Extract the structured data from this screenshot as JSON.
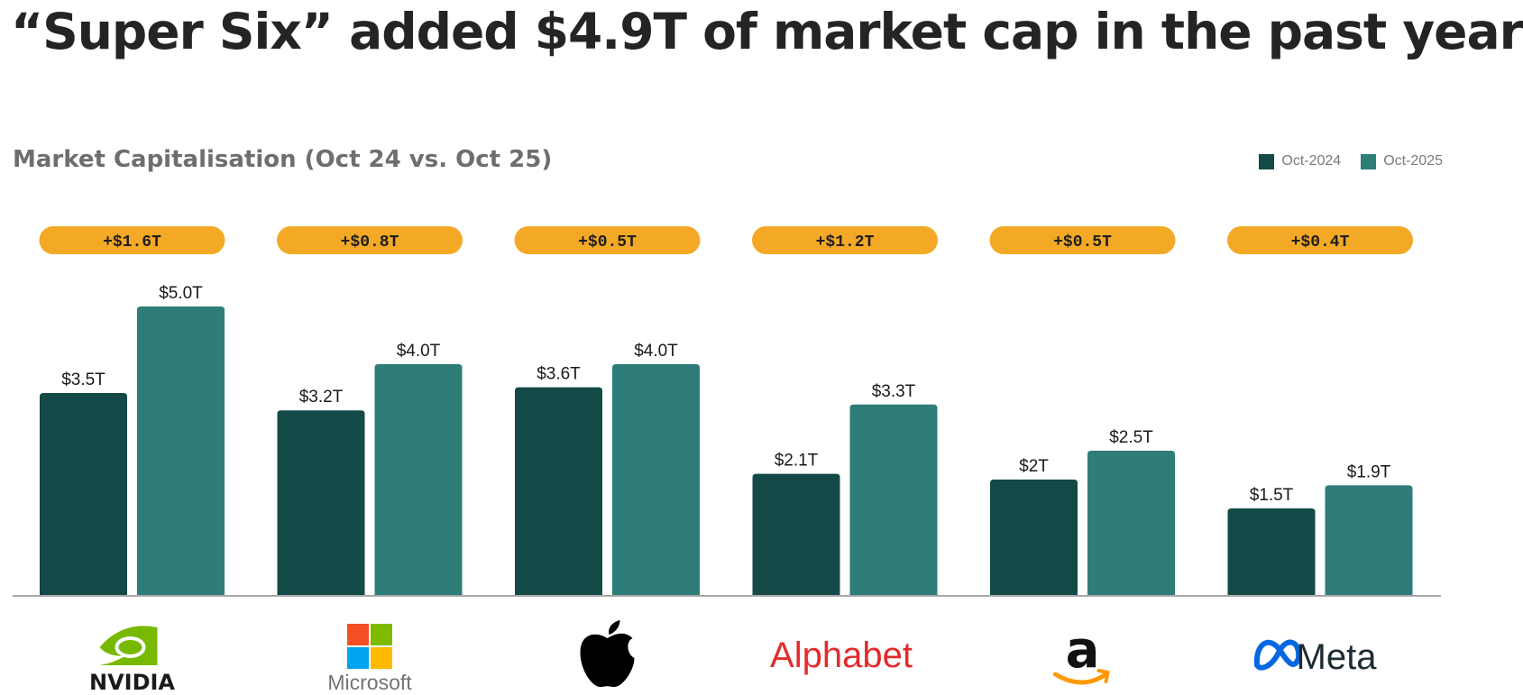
{
  "headline": "“Super Six” added $4.9T of market cap in the past year",
  "colors": {
    "oct2024": "#134a47",
    "oct2025": "#2e7d78",
    "pill": "#f3a926",
    "baseline": "#8a8a8a"
  },
  "chart_data": {
    "type": "bar",
    "title": "Market Capitalisation (Oct 24 vs. Oct 25)",
    "xlabel": "",
    "ylabel": "",
    "ylim": [
      0,
      5.2
    ],
    "grid": false,
    "legend_position": "top-right",
    "categories": [
      "NVIDIA",
      "Microsoft",
      "Apple",
      "Alphabet",
      "Amazon",
      "Meta"
    ],
    "series": [
      {
        "name": "Oct-2024",
        "values": [
          3.5,
          3.2,
          3.6,
          2.1,
          2.0,
          1.5
        ],
        "labels": [
          "$3.5T",
          "$3.2T",
          "$3.6T",
          "$2.1T",
          "$2T",
          "$1.5T"
        ]
      },
      {
        "name": "Oct-2025",
        "values": [
          5.0,
          4.0,
          4.0,
          3.3,
          2.5,
          1.9
        ],
        "labels": [
          "$5.0T",
          "$4.0T",
          "$4.0T",
          "$3.3T",
          "$2.5T",
          "$1.9T"
        ]
      }
    ],
    "change_labels": [
      "+$1.6T",
      "+$0.8T",
      "+$0.5T",
      "+$1.2T",
      "+$0.5T",
      "+$0.4T"
    ],
    "logos": [
      {
        "name": "nvidia-logo",
        "text": "NVIDIA"
      },
      {
        "name": "microsoft-logo",
        "text": "Microsoft"
      },
      {
        "name": "apple-logo",
        "text": ""
      },
      {
        "name": "alphabet-logo",
        "text": "Alphabet"
      },
      {
        "name": "amazon-logo",
        "text": "a"
      },
      {
        "name": "meta-logo",
        "text": "Meta"
      }
    ]
  }
}
